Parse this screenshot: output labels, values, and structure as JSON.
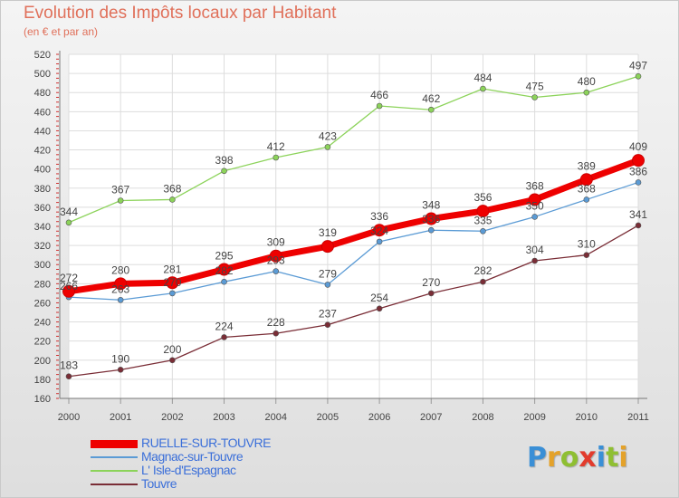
{
  "title": "Evolution des Impôts locaux par Habitant",
  "subtitle": "(en € et par an)",
  "logo": {
    "text": "Proxiti",
    "letters": [
      {
        "ch": "P",
        "color": "#3a8fd6"
      },
      {
        "ch": "r",
        "color": "#e4a22a"
      },
      {
        "ch": "o",
        "color": "#8fbf32"
      },
      {
        "ch": "x",
        "color": "#e23b2c"
      },
      {
        "ch": "i",
        "color": "#3a8fd6"
      },
      {
        "ch": "t",
        "color": "#8fbf32"
      },
      {
        "ch": "i",
        "color": "#e4a22a"
      }
    ]
  },
  "chart_data": {
    "type": "line",
    "x": [
      "2000",
      "2001",
      "2002",
      "2003",
      "2004",
      "2005",
      "2006",
      "2007",
      "2008",
      "2009",
      "2010",
      "2011"
    ],
    "ylim": [
      160,
      520
    ],
    "yticks": [
      160,
      180,
      200,
      220,
      240,
      260,
      280,
      300,
      320,
      340,
      360,
      380,
      400,
      420,
      440,
      460,
      480,
      500,
      520
    ],
    "grid": true,
    "legend": "bottom-left",
    "series": [
      {
        "name": "L' Isle-d'Espagnac",
        "color": "#8cd35a",
        "values": [
          344,
          367,
          368,
          398,
          412,
          423,
          466,
          462,
          484,
          475,
          480,
          497
        ],
        "labels": [
          "344",
          "367",
          "368",
          "398",
          "412",
          "423",
          "466",
          "462",
          "484",
          "475",
          "480",
          "497"
        ]
      },
      {
        "name": "Touvre",
        "color": "#7a2d36",
        "values": [
          183,
          190,
          200,
          224,
          228,
          237,
          254,
          270,
          282,
          304,
          310,
          341
        ],
        "labels": [
          "183",
          "190",
          "200",
          "224",
          "228",
          "237",
          "254",
          "270",
          "282",
          "304",
          "310",
          "341"
        ]
      },
      {
        "name": "Magnac-sur-Touvre",
        "color": "#5b9bd5",
        "values": [
          266,
          263,
          270,
          282,
          293,
          279,
          324,
          336,
          335,
          350,
          368,
          386
        ],
        "labels": [
          "266",
          "263",
          "270",
          "282",
          "293",
          "279",
          "324",
          "336",
          "335",
          "350",
          "368",
          "386"
        ]
      },
      {
        "name": "RUELLE-SUR-TOUVRE",
        "color": "#ee0000",
        "values": [
          272,
          280,
          281,
          295,
          309,
          319,
          336,
          348,
          356,
          368,
          389,
          409
        ],
        "labels": [
          "272",
          "280",
          "281",
          "295",
          "309",
          "319",
          "336",
          "348",
          "356",
          "368",
          "389",
          "409"
        ]
      }
    ],
    "legend_order": [
      "RUELLE-SUR-TOUVRE",
      "Magnac-sur-Touvre",
      "L' Isle-d'Espagnac",
      "Touvre"
    ]
  }
}
